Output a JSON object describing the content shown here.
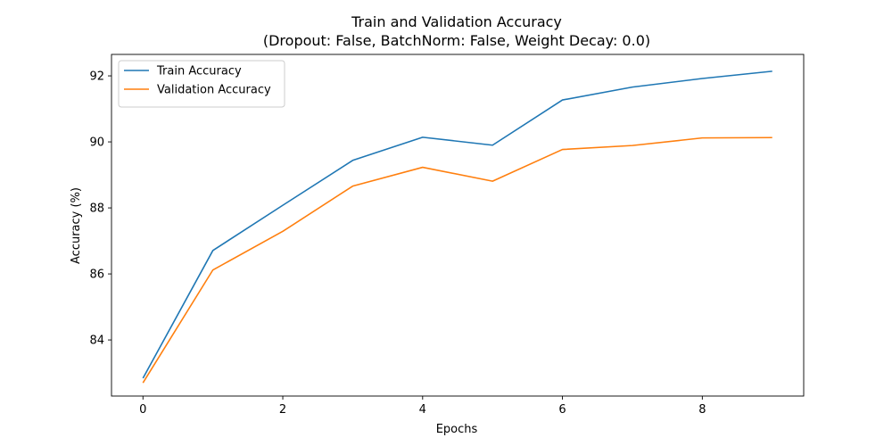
{
  "chart_data": {
    "type": "line",
    "title": "Train and Validation Accuracy",
    "subtitle": "(Dropout: False, BatchNorm: False, Weight Decay: 0.0)",
    "xlabel": "Epochs",
    "ylabel": "Accuracy (%)",
    "x": [
      0,
      1,
      2,
      3,
      4,
      5,
      6,
      7,
      8,
      9
    ],
    "xlim": [
      -0.45,
      9.45
    ],
    "ylim": [
      82.3,
      92.65
    ],
    "xticks": [
      0,
      2,
      4,
      6,
      8
    ],
    "yticks": [
      84,
      86,
      88,
      90,
      92
    ],
    "grid": false,
    "legend_position": "top-left",
    "series": [
      {
        "name": "Train Accuracy",
        "color": "#1f77b4",
        "values": [
          82.84,
          86.71,
          88.08,
          89.44,
          90.14,
          89.9,
          91.27,
          91.66,
          91.92,
          92.14
        ]
      },
      {
        "name": "Validation Accuracy",
        "color": "#ff7f0e",
        "values": [
          82.7,
          86.12,
          87.29,
          88.66,
          89.23,
          88.81,
          89.77,
          89.89,
          90.12,
          90.13
        ]
      }
    ]
  }
}
